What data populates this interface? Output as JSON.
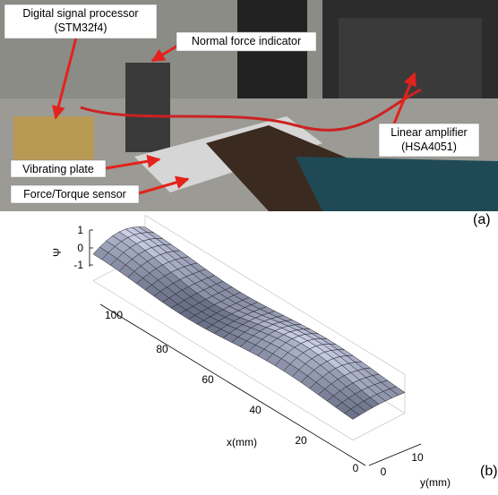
{
  "photo_labels": [
    {
      "lines": [
        "Digital signal processor",
        "(STM32f4)"
      ]
    },
    {
      "lines": [
        "Normal force indicator"
      ]
    },
    {
      "lines": [
        "Linear amplifier",
        "(HSA4051)"
      ]
    },
    {
      "lines": [
        "Vibrating plate"
      ]
    },
    {
      "lines": [
        "Force/Torque sensor"
      ]
    }
  ],
  "panel_labels": [
    "(a)",
    "(b)"
  ],
  "plot": {
    "z_label": "Ψ",
    "z_ticks": [
      "1",
      "0",
      "-1"
    ],
    "x_label": "x(mm)",
    "x_ticks": [
      "100",
      "80",
      "60",
      "40",
      "20",
      "0"
    ],
    "y_label": "y(mm)",
    "y_ticks": [
      "0",
      "10"
    ]
  }
}
